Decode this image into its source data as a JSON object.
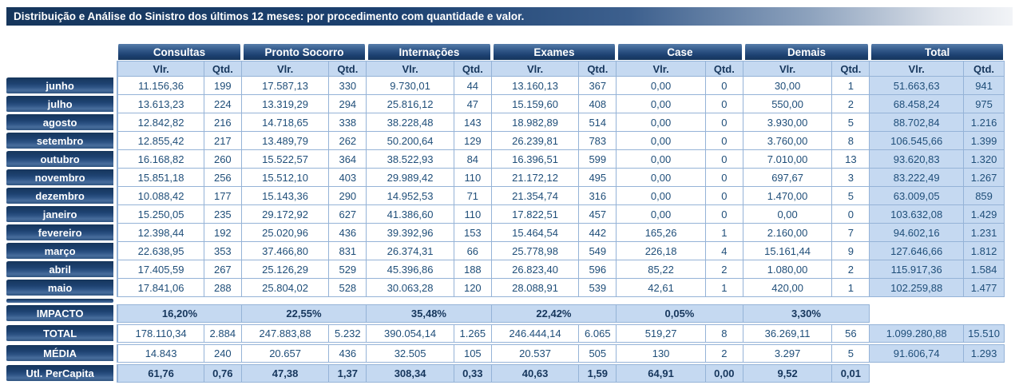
{
  "title": "Distribuição e Análise do Sinistro dos últimos 12 meses: por procedimento com quantidade e valor.",
  "colors": {
    "navy_dark": "#16365c",
    "navy_text": "#1f4e79",
    "light_blue": "#c5d9f1",
    "border_blue": "#95b3d7",
    "title_gradient_start": "#16365c",
    "title_gradient_end": "#f2f4f7"
  },
  "table": {
    "groups": [
      {
        "label": "Consultas"
      },
      {
        "label": "Pronto Socorro"
      },
      {
        "label": "Internações"
      },
      {
        "label": "Exames"
      },
      {
        "label": "Case"
      },
      {
        "label": "Demais"
      },
      {
        "label": "Total"
      }
    ],
    "subheaders": {
      "value": "Vlr.",
      "quantity": "Qtd."
    },
    "months": [
      {
        "label": "junho",
        "cells": [
          "11.156,36",
          "199",
          "17.587,13",
          "330",
          "9.730,01",
          "44",
          "13.160,13",
          "367",
          "0,00",
          "0",
          "30,00",
          "1",
          "51.663,63",
          "941"
        ]
      },
      {
        "label": "julho",
        "cells": [
          "13.613,23",
          "224",
          "13.319,29",
          "294",
          "25.816,12",
          "47",
          "15.159,60",
          "408",
          "0,00",
          "0",
          "550,00",
          "2",
          "68.458,24",
          "975"
        ]
      },
      {
        "label": "agosto",
        "cells": [
          "12.842,82",
          "216",
          "14.718,65",
          "338",
          "38.228,48",
          "143",
          "18.982,89",
          "514",
          "0,00",
          "0",
          "3.930,00",
          "5",
          "88.702,84",
          "1.216"
        ]
      },
      {
        "label": "setembro",
        "cells": [
          "12.855,42",
          "217",
          "13.489,79",
          "262",
          "50.200,64",
          "129",
          "26.239,81",
          "783",
          "0,00",
          "0",
          "3.760,00",
          "8",
          "106.545,66",
          "1.399"
        ]
      },
      {
        "label": "outubro",
        "cells": [
          "16.168,82",
          "260",
          "15.522,57",
          "364",
          "38.522,93",
          "84",
          "16.396,51",
          "599",
          "0,00",
          "0",
          "7.010,00",
          "13",
          "93.620,83",
          "1.320"
        ]
      },
      {
        "label": "novembro",
        "cells": [
          "15.851,18",
          "256",
          "15.512,10",
          "403",
          "29.989,42",
          "110",
          "21.172,12",
          "495",
          "0,00",
          "0",
          "697,67",
          "3",
          "83.222,49",
          "1.267"
        ]
      },
      {
        "label": "dezembro",
        "cells": [
          "10.088,42",
          "177",
          "15.143,36",
          "290",
          "14.952,53",
          "71",
          "21.354,74",
          "316",
          "0,00",
          "0",
          "1.470,00",
          "5",
          "63.009,05",
          "859"
        ]
      },
      {
        "label": "janeiro",
        "cells": [
          "15.250,05",
          "235",
          "29.172,92",
          "627",
          "41.386,60",
          "110",
          "17.822,51",
          "457",
          "0,00",
          "0",
          "0,00",
          "0",
          "103.632,08",
          "1.429"
        ]
      },
      {
        "label": "fevereiro",
        "cells": [
          "12.398,44",
          "192",
          "25.020,96",
          "436",
          "39.392,96",
          "153",
          "15.464,54",
          "442",
          "165,26",
          "1",
          "2.160,00",
          "7",
          "94.602,16",
          "1.231"
        ]
      },
      {
        "label": "março",
        "cells": [
          "22.638,95",
          "353",
          "37.466,80",
          "831",
          "26.374,31",
          "66",
          "25.778,98",
          "549",
          "226,18",
          "4",
          "15.161,44",
          "9",
          "127.646,66",
          "1.812"
        ]
      },
      {
        "label": "abril",
        "cells": [
          "17.405,59",
          "267",
          "25.126,29",
          "529",
          "45.396,86",
          "188",
          "26.823,40",
          "596",
          "85,22",
          "2",
          "1.080,00",
          "2",
          "115.917,36",
          "1.584"
        ]
      },
      {
        "label": "maio",
        "cells": [
          "17.841,06",
          "288",
          "25.804,02",
          "528",
          "30.063,28",
          "120",
          "28.088,91",
          "539",
          "42,61",
          "1",
          "420,00",
          "1",
          "102.259,88",
          "1.477"
        ]
      }
    ],
    "summary": {
      "impacto": {
        "label": "IMPACTO",
        "cells": [
          "16,20%",
          "22,55%",
          "35,48%",
          "22,42%",
          "0,05%",
          "3,30%"
        ]
      },
      "total": {
        "label": "TOTAL",
        "cells": [
          "178.110,34",
          "2.884",
          "247.883,88",
          "5.232",
          "390.054,14",
          "1.265",
          "246.444,14",
          "6.065",
          "519,27",
          "8",
          "36.269,11",
          "56",
          "1.099.280,88",
          "15.510"
        ]
      },
      "media": {
        "label": "MÉDIA",
        "cells": [
          "14.843",
          "240",
          "20.657",
          "436",
          "32.505",
          "105",
          "20.537",
          "505",
          "130",
          "2",
          "3.297",
          "5",
          "91.606,74",
          "1.293"
        ]
      },
      "percapita": {
        "label": "Utl. PerCapita",
        "cells": [
          "61,76",
          "0,76",
          "47,38",
          "1,37",
          "308,34",
          "0,33",
          "40,63",
          "1,59",
          "64,91",
          "0,00",
          "9,52",
          "0,01"
        ]
      }
    }
  }
}
